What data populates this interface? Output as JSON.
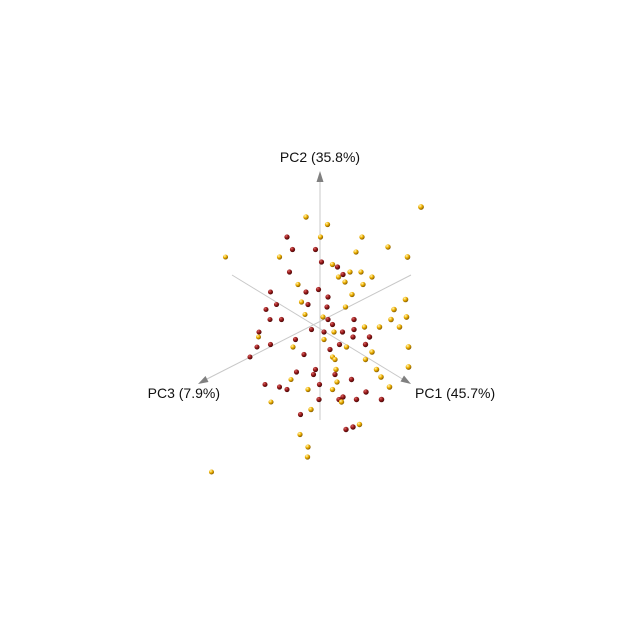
{
  "chart_data": {
    "type": "scatter",
    "projection": "3d",
    "title": "",
    "grid": false,
    "legend": "none",
    "axes": {
      "pc1": {
        "label": "PC1 (45.7%)"
      },
      "pc2": {
        "label": "PC2 (35.8%)"
      },
      "pc3": {
        "label": "PC3 (7.9%)"
      }
    },
    "colors": {
      "group_a": "#f2b400",
      "group_b": "#9e1b1b",
      "axis": "#c8c8c8",
      "arrow": "#808080"
    },
    "series": [
      {
        "values": [
          [
            -0.07,
            2.1,
            0.7
          ],
          [
            0.18,
            1.95,
            0.1
          ],
          [
            1.9,
            2.3,
            -0.4
          ],
          [
            -1.5,
            1.3,
            1.3
          ],
          [
            0.04,
            1.7,
            0.1
          ],
          [
            0.72,
            1.7,
            -0.4
          ],
          [
            1.6,
            1.3,
            -0.5
          ],
          [
            -0.6,
            1.3,
            0.7
          ],
          [
            1.18,
            1.5,
            -0.6
          ],
          [
            0.54,
            1.0,
            -0.2
          ],
          [
            0.28,
            1.15,
            0.1
          ],
          [
            0.7,
            1.0,
            -0.4
          ],
          [
            0.44,
            0.8,
            -0.2
          ],
          [
            0.6,
            1.4,
            -0.4
          ],
          [
            0.86,
            0.9,
            -0.6
          ],
          [
            0.34,
            0.9,
            -0.1
          ],
          [
            0.74,
            0.75,
            -0.4
          ],
          [
            -0.35,
            0.75,
            0.3
          ],
          [
            -0.28,
            0.4,
            0.3
          ],
          [
            0.58,
            0.55,
            -0.2
          ],
          [
            -0.3,
            0.15,
            0.0
          ],
          [
            0.48,
            0.3,
            -0.1
          ],
          [
            0.03,
            0.1,
            -0.1
          ],
          [
            -1.05,
            -0.3,
            0.6
          ],
          [
            1.58,
            0.1,
            -0.5
          ],
          [
            1.3,
            0.05,
            -0.4
          ],
          [
            1.1,
            -0.1,
            -0.3
          ],
          [
            1.44,
            -0.1,
            -0.5
          ],
          [
            1.56,
            0.45,
            -0.5
          ],
          [
            1.36,
            0.25,
            -0.4
          ],
          [
            0.8,
            -0.1,
            -0.3
          ],
          [
            1.68,
            -0.5,
            -0.3
          ],
          [
            0.98,
            -0.6,
            -0.2
          ],
          [
            -0.42,
            -0.5,
            0.4
          ],
          [
            0.22,
            -0.7,
            -0.1
          ],
          [
            0.08,
            -0.35,
            0.0
          ],
          [
            1.68,
            -0.9,
            -0.3
          ],
          [
            0.82,
            -0.75,
            -0.3
          ],
          [
            0.28,
            -1.35,
            0.1
          ],
          [
            1.16,
            -1.1,
            -0.2
          ],
          [
            0.3,
            -0.75,
            0.0
          ],
          [
            1.04,
            -0.95,
            -0.3
          ],
          [
            0.5,
            -0.5,
            -0.1
          ],
          [
            -0.18,
            -1.35,
            0.2
          ],
          [
            -0.12,
            -1.75,
            0.2
          ],
          [
            0.34,
            -1.2,
            0.0
          ],
          [
            0.46,
            -1.6,
            0.1
          ],
          [
            -0.8,
            -1.6,
            0.6
          ],
          [
            -0.09,
            -1.75,
            0.3
          ],
          [
            1.3,
            -1.3,
            -0.3
          ],
          [
            -1.75,
            -3.0,
            1.4
          ],
          [
            -0.31,
            -2.25,
            0.3
          ],
          [
            -0.12,
            -2.5,
            0.4
          ],
          [
            -0.1,
            -2.7,
            0.5
          ],
          [
            0.76,
            -2.05,
            -0.1
          ],
          [
            0.35,
            -0.95,
            0.1
          ],
          [
            -0.49,
            -1.15,
            0.3
          ],
          [
            0.28,
            -0.2,
            0.0
          ]
        ]
      },
      {
        "values": [
          [
            -0.48,
            1.7,
            0.6
          ],
          [
            -0.4,
            1.45,
            0.5
          ],
          [
            0.06,
            1.2,
            0.1
          ],
          [
            0.4,
            0.95,
            -0.2
          ],
          [
            0.0,
            0.65,
            0.1
          ],
          [
            0.16,
            0.5,
            0.0
          ],
          [
            -0.49,
            1.0,
            0.4
          ],
          [
            -0.84,
            0.6,
            0.5
          ],
          [
            -0.22,
            0.6,
            0.2
          ],
          [
            -0.9,
            0.25,
            0.6
          ],
          [
            -0.98,
            -0.2,
            0.8
          ],
          [
            -0.78,
            -0.45,
            0.7
          ],
          [
            -1.02,
            -0.5,
            0.8
          ],
          [
            -0.62,
            0.05,
            0.5
          ],
          [
            -0.72,
            0.35,
            0.5
          ],
          [
            -0.4,
            -0.35,
            0.3
          ],
          [
            -0.14,
            -0.15,
            0.1
          ],
          [
            0.16,
            0.05,
            0.0
          ],
          [
            -0.18,
            0.35,
            0.2
          ],
          [
            0.14,
            0.3,
            0.0
          ],
          [
            0.08,
            -0.2,
            0.0
          ],
          [
            0.6,
            -0.3,
            -0.2
          ],
          [
            0.62,
            0.05,
            -0.2
          ],
          [
            0.42,
            -0.2,
            -0.1
          ],
          [
            0.22,
            -0.05,
            -0.1
          ],
          [
            -0.26,
            -0.65,
            0.2
          ],
          [
            -0.38,
            -1.0,
            0.3
          ],
          [
            0.2,
            -0.55,
            0.0
          ],
          [
            0.82,
            -0.45,
            -0.3
          ],
          [
            0.9,
            -0.3,
            -0.3
          ],
          [
            0.36,
            -0.45,
            -0.1
          ],
          [
            -0.54,
            -1.35,
            0.4
          ],
          [
            -0.66,
            -1.3,
            0.5
          ],
          [
            -0.92,
            -1.25,
            0.6
          ],
          [
            -0.1,
            -1.05,
            0.1
          ],
          [
            0.02,
            -1.25,
            0.1
          ],
          [
            -0.06,
            -0.95,
            0.1
          ],
          [
            0.46,
            -1.5,
            0.0
          ],
          [
            0.6,
            -1.15,
            -0.1
          ],
          [
            0.38,
            -1.55,
            0.0
          ],
          [
            0.7,
            -1.55,
            -0.1
          ],
          [
            0.86,
            -1.4,
            -0.2
          ],
          [
            1.14,
            -1.55,
            -0.3
          ],
          [
            0.04,
            -1.55,
            0.2
          ],
          [
            -1.16,
            -0.7,
            0.8
          ],
          [
            -0.82,
            0.05,
            0.6
          ],
          [
            0.66,
            -2.1,
            0.0
          ],
          [
            0.52,
            -2.15,
            0.0
          ],
          [
            -0.3,
            -1.85,
            0.3
          ],
          [
            0.3,
            -1.05,
            0.0
          ],
          [
            0.62,
            -0.15,
            -0.2
          ],
          [
            0.32,
            1.1,
            -0.1
          ],
          [
            -0.06,
            1.45,
            0.1
          ]
        ]
      }
    ]
  }
}
